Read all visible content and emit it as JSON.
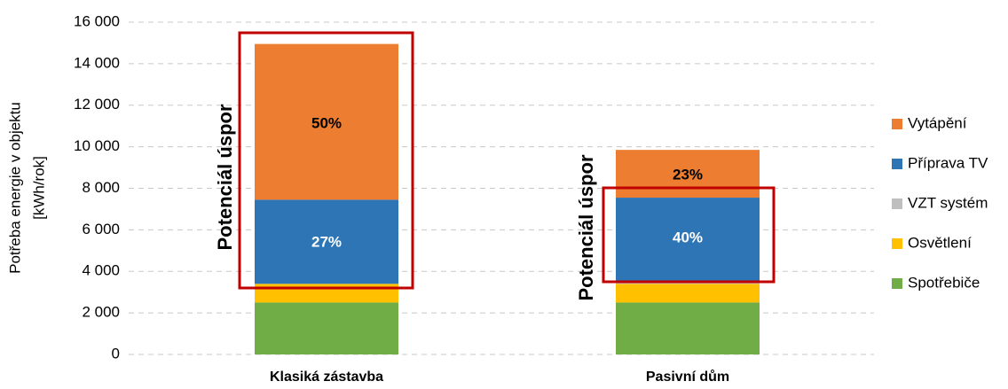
{
  "chart_data": {
    "type": "stacked_bar",
    "ylabel": [
      "Potřeba energie v objektu",
      "[kWh/rok]"
    ],
    "categories": [
      "Klasiká zástavba",
      "Pasivní dům"
    ],
    "series": [
      {
        "name": "Spotřebiče",
        "color": "#70ad47",
        "values": [
          2500,
          2500
        ]
      },
      {
        "name": "Osvětlení",
        "color": "#ffc000",
        "values": [
          900,
          900
        ]
      },
      {
        "name": "VZT systém",
        "color": "#bfbfbf",
        "values": [
          0,
          150
        ]
      },
      {
        "name": "Příprava TV",
        "color": "#2e75b6",
        "values": [
          4050,
          4000
        ]
      },
      {
        "name": "Vytápění",
        "color": "#ed7d31",
        "values": [
          7500,
          2300
        ]
      }
    ],
    "annotations": [
      "50%",
      "27%",
      "23%",
      "40%",
      "Potenciál úspor",
      "Potenciál úspor"
    ],
    "ylim": [
      0,
      16000
    ],
    "yticks": [
      0,
      {
        "value": 2000,
        "label": "2 000"
      },
      {
        "value": 4000,
        "label": "4 000"
      },
      {
        "value": 6000,
        "label": "6 000"
      },
      {
        "value": 8000,
        "label": "8 000"
      },
      {
        "value": 10000,
        "label": "10 000"
      },
      {
        "value": 12000,
        "label": "12 000"
      },
      {
        "value": 14000,
        "label": "14 000"
      },
      {
        "value": 16000,
        "label": "16 000"
      }
    ],
    "grid": true,
    "legend": "right"
  }
}
